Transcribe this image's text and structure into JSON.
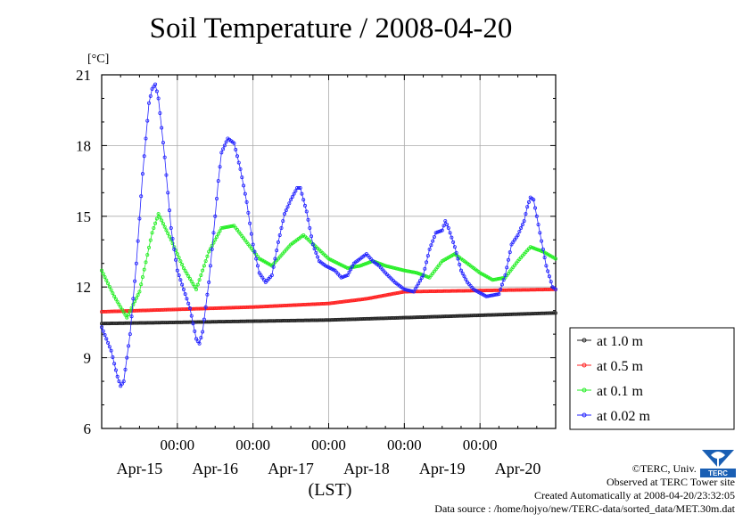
{
  "credits": {
    "copyright": "©TERC, Univ. Tsukuba",
    "observed": "Observed at TERC Tower site",
    "created": "Created Automatically at 2008-04-20/23:32:05",
    "source": "Data source : /home/hojyo/new/TERC-data/sorted_data/MET.30m.dat"
  },
  "logo": {
    "text": "TERC",
    "color": "#1a5fb4"
  },
  "chart_data": {
    "type": "line",
    "title": "Soil Temperature / 2008-04-20",
    "unit": "[°C]",
    "xlabel": "(LST)",
    "ylabel": "",
    "ylim": [
      6,
      21
    ],
    "yticks": [
      6,
      9,
      12,
      15,
      18,
      21
    ],
    "xlim_hours": [
      0,
      144
    ],
    "x_time_ticks": [
      {
        "hour": 24,
        "label": "00:00"
      },
      {
        "hour": 48,
        "label": "00:00"
      },
      {
        "hour": 72,
        "label": "00:00"
      },
      {
        "hour": 96,
        "label": "00:00"
      },
      {
        "hour": 120,
        "label": "00:00"
      }
    ],
    "x_day_labels": [
      {
        "hour": 12,
        "label": "Apr-15"
      },
      {
        "hour": 36,
        "label": "Apr-16"
      },
      {
        "hour": 60,
        "label": "Apr-17"
      },
      {
        "hour": 84,
        "label": "Apr-18"
      },
      {
        "hour": 108,
        "label": "Apr-19"
      },
      {
        "hour": 132,
        "label": "Apr-20"
      }
    ],
    "grid": true,
    "legend_position": "right",
    "series": [
      {
        "name": "at 1.0 m",
        "color": "#222222",
        "points": [
          [
            0,
            10.45
          ],
          [
            24,
            10.5
          ],
          [
            48,
            10.55
          ],
          [
            72,
            10.6
          ],
          [
            96,
            10.7
          ],
          [
            120,
            10.8
          ],
          [
            144,
            10.9
          ]
        ]
      },
      {
        "name": "at 0.5 m",
        "color": "#ff2020",
        "points": [
          [
            0,
            10.95
          ],
          [
            24,
            11.05
          ],
          [
            48,
            11.15
          ],
          [
            72,
            11.3
          ],
          [
            84,
            11.5
          ],
          [
            96,
            11.8
          ],
          [
            120,
            11.85
          ],
          [
            144,
            11.9
          ]
        ]
      },
      {
        "name": "at 0.1 m",
        "color": "#22ee22",
        "points": [
          [
            0,
            12.7
          ],
          [
            4,
            11.6
          ],
          [
            8,
            10.7
          ],
          [
            12,
            11.8
          ],
          [
            16,
            14.3
          ],
          [
            18,
            15.1
          ],
          [
            22,
            14.0
          ],
          [
            26,
            12.8
          ],
          [
            30,
            11.9
          ],
          [
            34,
            13.5
          ],
          [
            38,
            14.5
          ],
          [
            42,
            14.6
          ],
          [
            46,
            13.9
          ],
          [
            50,
            13.2
          ],
          [
            54,
            12.9
          ],
          [
            60,
            13.8
          ],
          [
            64,
            14.2
          ],
          [
            68,
            13.7
          ],
          [
            72,
            13.2
          ],
          [
            78,
            12.8
          ],
          [
            82,
            12.9
          ],
          [
            86,
            13.1
          ],
          [
            90,
            12.9
          ],
          [
            96,
            12.7
          ],
          [
            100,
            12.6
          ],
          [
            104,
            12.4
          ],
          [
            108,
            13.1
          ],
          [
            112,
            13.4
          ],
          [
            116,
            13.0
          ],
          [
            120,
            12.6
          ],
          [
            124,
            12.3
          ],
          [
            128,
            12.4
          ],
          [
            132,
            13.1
          ],
          [
            136,
            13.7
          ],
          [
            140,
            13.5
          ],
          [
            144,
            13.2
          ]
        ]
      },
      {
        "name": "at 0.02 m",
        "color": "#2222ff",
        "points": [
          [
            0,
            10.3
          ],
          [
            3,
            9.3
          ],
          [
            5,
            8.2
          ],
          [
            6,
            7.8
          ],
          [
            7,
            8.0
          ],
          [
            9,
            10.0
          ],
          [
            11,
            13.0
          ],
          [
            13,
            16.8
          ],
          [
            15,
            19.8
          ],
          [
            16,
            20.4
          ],
          [
            17,
            20.6
          ],
          [
            18,
            20.0
          ],
          [
            20,
            17.5
          ],
          [
            22,
            14.5
          ],
          [
            24,
            12.7
          ],
          [
            26,
            11.9
          ],
          [
            28,
            11.1
          ],
          [
            30,
            9.8
          ],
          [
            31,
            9.6
          ],
          [
            32,
            10.1
          ],
          [
            34,
            12.2
          ],
          [
            36,
            15.0
          ],
          [
            37,
            16.5
          ],
          [
            38,
            17.7
          ],
          [
            40,
            18.3
          ],
          [
            42,
            18.1
          ],
          [
            44,
            17.0
          ],
          [
            46,
            15.6
          ],
          [
            48,
            13.8
          ],
          [
            50,
            12.6
          ],
          [
            52,
            12.2
          ],
          [
            54,
            12.5
          ],
          [
            56,
            13.9
          ],
          [
            58,
            15.1
          ],
          [
            60,
            15.7
          ],
          [
            62,
            16.2
          ],
          [
            63,
            16.2
          ],
          [
            65,
            15.2
          ],
          [
            67,
            13.8
          ],
          [
            69,
            13.1
          ],
          [
            71,
            12.9
          ],
          [
            74,
            12.7
          ],
          [
            76,
            12.4
          ],
          [
            78,
            12.5
          ],
          [
            80,
            13.0
          ],
          [
            82,
            13.2
          ],
          [
            84,
            13.4
          ],
          [
            86,
            13.1
          ],
          [
            88,
            12.9
          ],
          [
            90,
            12.6
          ],
          [
            93,
            12.2
          ],
          [
            96,
            11.9
          ],
          [
            99,
            11.8
          ],
          [
            102,
            12.5
          ],
          [
            104,
            13.6
          ],
          [
            106,
            14.3
          ],
          [
            108,
            14.4
          ],
          [
            109,
            14.8
          ],
          [
            110,
            14.5
          ],
          [
            112,
            13.7
          ],
          [
            114,
            12.7
          ],
          [
            116,
            12.2
          ],
          [
            118,
            11.9
          ],
          [
            122,
            11.6
          ],
          [
            126,
            11.7
          ],
          [
            128,
            12.5
          ],
          [
            130,
            13.8
          ],
          [
            132,
            14.2
          ],
          [
            134,
            14.8
          ],
          [
            135,
            15.4
          ],
          [
            136,
            15.8
          ],
          [
            137,
            15.7
          ],
          [
            139,
            14.3
          ],
          [
            141,
            12.9
          ],
          [
            143,
            12.0
          ],
          [
            144,
            11.9
          ]
        ]
      }
    ]
  }
}
